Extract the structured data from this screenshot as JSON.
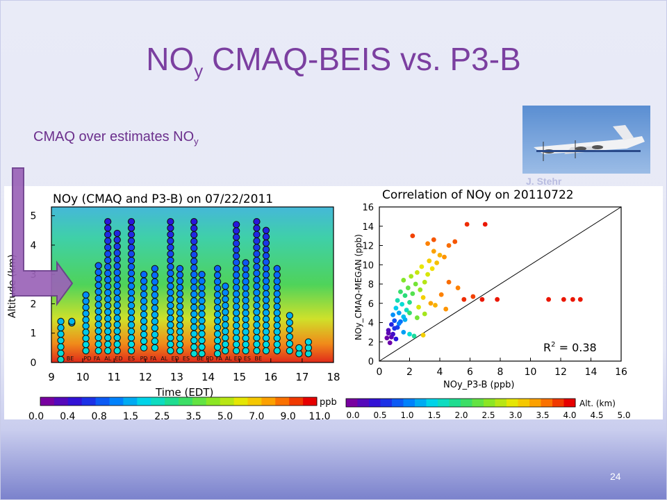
{
  "slide": {
    "title_main": "NO",
    "title_sub": "y",
    "title_rest": " CMAQ-BEIS vs. P3-B",
    "bullet_main": "CMAQ over estimates NO",
    "bullet_sub": "y",
    "photo_credit": "J. Stehr",
    "page_number": "24"
  },
  "colors": {
    "title": "#7b3fa0",
    "arrow_fill": "#9b63b8",
    "arrow_stroke": "#6b3b8c"
  },
  "chart_data": [
    {
      "type": "heatmap",
      "title": "NOy (CMAQ and P3-B) on 07/22/2011",
      "xlabel": "Time (EDT)",
      "ylabel": "Altitude (km)",
      "xlim": [
        9,
        18
      ],
      "ylim": [
        0,
        5.3
      ],
      "xticks": [
        "9",
        "10",
        "11",
        "12",
        "13",
        "14",
        "15",
        "16",
        "17",
        "18"
      ],
      "yticks": [
        "0",
        "1",
        "2",
        "3",
        "4",
        "5"
      ],
      "airport_labels": [
        "BE",
        "PD",
        "FA",
        "AL",
        "ED",
        "ES",
        "PD",
        "FA",
        "AL",
        "ED",
        "ES",
        "BE",
        "PD",
        "FA",
        "AL",
        "ED",
        "ES",
        "BE"
      ],
      "colorbar": {
        "unit": "ppb",
        "ticks": [
          "0.0",
          "0.4",
          "0.8",
          "1.5",
          "2.5",
          "3.5",
          "5.0",
          "7.0",
          "9.0",
          "11.0"
        ]
      },
      "profiles": [
        {
          "t": 9.3,
          "alt_min": 0.1,
          "alt_max": 1.4
        },
        {
          "t": 9.65,
          "alt_min": 1.35,
          "alt_max": 1.4
        },
        {
          "t": 10.1,
          "alt_min": 0.4,
          "alt_max": 2.3
        },
        {
          "t": 10.5,
          "alt_min": 0.4,
          "alt_max": 3.3
        },
        {
          "t": 10.8,
          "alt_min": 0.4,
          "alt_max": 4.8
        },
        {
          "t": 11.1,
          "alt_min": 0.4,
          "alt_max": 4.4
        },
        {
          "t": 11.55,
          "alt_min": 0.4,
          "alt_max": 4.8
        },
        {
          "t": 11.95,
          "alt_min": 0.5,
          "alt_max": 3.0
        },
        {
          "t": 12.3,
          "alt_min": 0.5,
          "alt_max": 3.2
        },
        {
          "t": 12.8,
          "alt_min": 0.4,
          "alt_max": 4.8
        },
        {
          "t": 13.1,
          "alt_min": 0.4,
          "alt_max": 3.2
        },
        {
          "t": 13.55,
          "alt_min": 0.3,
          "alt_max": 4.8
        },
        {
          "t": 13.8,
          "alt_min": 0.3,
          "alt_max": 3.0
        },
        {
          "t": 14.3,
          "alt_min": 0.3,
          "alt_max": 3.2
        },
        {
          "t": 14.55,
          "alt_min": 0.4,
          "alt_max": 2.6
        },
        {
          "t": 14.9,
          "alt_min": 0.4,
          "alt_max": 4.7
        },
        {
          "t": 15.2,
          "alt_min": 0.4,
          "alt_max": 3.4
        },
        {
          "t": 15.55,
          "alt_min": 0.4,
          "alt_max": 4.8
        },
        {
          "t": 15.85,
          "alt_min": 0.4,
          "alt_max": 4.5
        },
        {
          "t": 16.2,
          "alt_min": 0.4,
          "alt_max": 3.2
        },
        {
          "t": 16.6,
          "alt_min": 0.4,
          "alt_max": 1.6
        },
        {
          "t": 16.9,
          "alt_min": 0.3,
          "alt_max": 0.5
        },
        {
          "t": 17.2,
          "alt_min": 0.3,
          "alt_max": 0.7
        }
      ]
    },
    {
      "type": "scatter",
      "title": "Correlation of NOy on 20110722",
      "xlabel": "NOy_P3-B (ppb)",
      "ylabel": "NOy_CMAQ-MEGAN (ppb)",
      "xlim": [
        0,
        16
      ],
      "ylim": [
        0,
        16
      ],
      "xticks": [
        "0",
        "2",
        "4",
        "6",
        "8",
        "10",
        "12",
        "14",
        "16"
      ],
      "yticks": [
        "0",
        "2",
        "4",
        "6",
        "8",
        "10",
        "12",
        "14",
        "16"
      ],
      "annotation_r2_label": "R",
      "annotation_r2_sup": "2",
      "annotation_r2_value": " = 0.38",
      "one_to_one_line": true,
      "colorbar": {
        "unit": "Alt. (km)",
        "ticks": [
          "0.0",
          "0.5",
          "1.0",
          "1.5",
          "2.0",
          "2.5",
          "3.0",
          "3.5",
          "4.0",
          "4.5",
          "5.0"
        ]
      },
      "points": [
        [
          0.7,
          1.9,
          0.1
        ],
        [
          0.8,
          2.5,
          0.2
        ],
        [
          0.6,
          3.2,
          0.3
        ],
        [
          0.9,
          2.8,
          0.4
        ],
        [
          1.1,
          2.3,
          0.6
        ],
        [
          0.8,
          3.8,
          0.7
        ],
        [
          1.2,
          3.5,
          0.9
        ],
        [
          1.0,
          4.2,
          1.0
        ],
        [
          1.4,
          4.1,
          1.2
        ],
        [
          0.9,
          4.8,
          1.4
        ],
        [
          1.3,
          5.0,
          1.5
        ],
        [
          1.6,
          4.6,
          1.7
        ],
        [
          1.1,
          5.5,
          1.8
        ],
        [
          1.5,
          5.9,
          2.0
        ],
        [
          1.8,
          5.3,
          2.1
        ],
        [
          1.2,
          6.3,
          2.2
        ],
        [
          2.0,
          6.1,
          2.4
        ],
        [
          1.7,
          6.8,
          2.5
        ],
        [
          1.4,
          7.2,
          2.6
        ],
        [
          2.2,
          7.0,
          2.8
        ],
        [
          1.9,
          7.6,
          2.9
        ],
        [
          2.4,
          8.0,
          3.0
        ],
        [
          1.6,
          8.4,
          3.1
        ],
        [
          2.7,
          7.4,
          3.2
        ],
        [
          2.1,
          8.8,
          3.3
        ],
        [
          3.0,
          8.2,
          3.4
        ],
        [
          2.5,
          9.2,
          3.5
        ],
        [
          3.2,
          9.0,
          3.6
        ],
        [
          2.8,
          9.8,
          3.7
        ],
        [
          3.5,
          9.6,
          3.8
        ],
        [
          3.3,
          10.4,
          3.9
        ],
        [
          3.8,
          10.2,
          4.0
        ],
        [
          4.0,
          11.0,
          4.1
        ],
        [
          3.6,
          11.4,
          4.2
        ],
        [
          4.3,
          10.8,
          4.3
        ],
        [
          3.2,
          12.2,
          4.4
        ],
        [
          4.6,
          12.0,
          4.5
        ],
        [
          5.0,
          12.4,
          4.6
        ],
        [
          5.8,
          14.2,
          4.8
        ],
        [
          7.0,
          14.2,
          4.9
        ],
        [
          2.2,
          13.0,
          4.7
        ],
        [
          3.6,
          12.6,
          4.6
        ],
        [
          4.6,
          8.2,
          4.5
        ],
        [
          5.2,
          7.6,
          4.4
        ],
        [
          5.6,
          6.4,
          4.8
        ],
        [
          6.2,
          6.7,
          4.7
        ],
        [
          6.8,
          6.4,
          4.9
        ],
        [
          7.8,
          6.4,
          4.9
        ],
        [
          11.2,
          6.4,
          4.9
        ],
        [
          12.2,
          6.4,
          4.9
        ],
        [
          12.8,
          6.4,
          4.9
        ],
        [
          13.3,
          6.4,
          4.9
        ],
        [
          3.4,
          6.0,
          4.2
        ],
        [
          2.9,
          6.6,
          3.9
        ],
        [
          4.1,
          6.9,
          4.4
        ],
        [
          3.7,
          5.8,
          4.1
        ],
        [
          2.6,
          5.6,
          3.6
        ],
        [
          4.4,
          5.4,
          4.3
        ],
        [
          1.6,
          3.0,
          1.5
        ],
        [
          2.0,
          2.8,
          2.0
        ],
        [
          2.3,
          2.6,
          2.3
        ],
        [
          2.9,
          2.7,
          3.9
        ],
        [
          0.5,
          2.4,
          0.1
        ],
        [
          0.6,
          2.9,
          0.2
        ],
        [
          1.0,
          3.4,
          0.8
        ],
        [
          1.3,
          3.9,
          1.3
        ],
        [
          1.7,
          4.3,
          1.6
        ],
        [
          2.5,
          4.5,
          3.0
        ],
        [
          3.0,
          4.9,
          3.3
        ],
        [
          2.0,
          5.0,
          2.6
        ]
      ]
    }
  ]
}
